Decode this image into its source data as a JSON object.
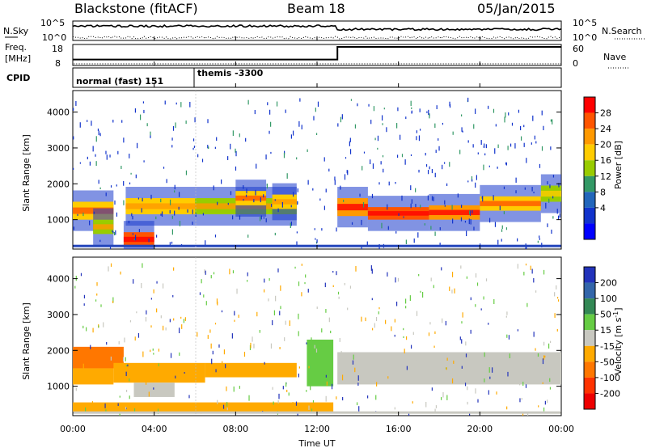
{
  "header": {
    "station": "Blackstone (fitACF)",
    "beam": "Beam 18",
    "date": "05/Jan/2015"
  },
  "nsky_panel": {
    "left_label": "N.Sky",
    "right_label": "N.Search",
    "ticks_left": [
      "10^5",
      "10^0"
    ],
    "ticks_right": [
      "10^5",
      "10^0"
    ]
  },
  "freq_panel": {
    "left_label_1": "Freq.",
    "left_label_2": "[MHz]",
    "right_label": "Nave",
    "ticks_left": [
      "18",
      "8"
    ],
    "ticks_right": [
      "60",
      "0"
    ],
    "freq_segments": [
      {
        "from_hour": 0,
        "to_hour": 13,
        "mhz": 10.2
      },
      {
        "from_hour": 13,
        "to_hour": 24,
        "mhz": 18
      }
    ]
  },
  "cpid_panel": {
    "label": "CPID",
    "modes": [
      {
        "name": "normal (fast) 151",
        "start_hour": 0
      },
      {
        "name": "themis -3300",
        "start_hour": 6
      }
    ]
  },
  "power_colorbar": {
    "label": "Power [dB]",
    "ticks": [
      "28",
      "24",
      "20",
      "16",
      "12",
      "8",
      "4"
    ],
    "colors": [
      "#ff0000",
      "#ff5500",
      "#ff9900",
      "#ffcc00",
      "#99cc00",
      "#339966",
      "#2266bb",
      "#1133cc",
      "#0000ff"
    ]
  },
  "velocity_colorbar": {
    "label": "Velocity [m s^-1]",
    "ticks": [
      "200",
      "100",
      "50",
      "15",
      "-15",
      "-50",
      "-100",
      "-200"
    ],
    "colors": [
      "#2233bb",
      "#3366aa",
      "#338855",
      "#66cc44",
      "#c8c8c0",
      "#ffaa00",
      "#ff7700",
      "#ff3300",
      "#ee0000"
    ]
  },
  "chart_data": {
    "type": "heatmap",
    "xlabel": "Time UT",
    "ylabel": "Slant Range [km]",
    "x_ticks": [
      "00:00",
      "04:00",
      "08:00",
      "12:00",
      "16:00",
      "20:00",
      "00:00"
    ],
    "y_ticks": [
      "1000",
      "2000",
      "3000",
      "4000"
    ],
    "xlim": [
      0,
      24
    ],
    "ylim": [
      180,
      4600
    ],
    "power_bands": [
      {
        "start_hour": 0.0,
        "end_hour": 2.0,
        "range_low": 1000,
        "range_high": 1500,
        "power_db": 20
      },
      {
        "start_hour": 1.0,
        "end_hour": 2.0,
        "range_low": 600,
        "range_high": 1000,
        "power_db": 16
      },
      {
        "start_hour": 2.6,
        "end_hour": 6.0,
        "range_low": 1150,
        "range_high": 1600,
        "power_db": 18
      },
      {
        "start_hour": 2.5,
        "end_hour": 4.0,
        "range_low": 250,
        "range_high": 650,
        "power_db": 26
      },
      {
        "start_hour": 6.0,
        "end_hour": 11.0,
        "range_low": 1150,
        "range_high": 1600,
        "power_db": 16
      },
      {
        "start_hour": 8.0,
        "end_hour": 9.5,
        "range_low": 1400,
        "range_high": 1800,
        "power_db": 20
      },
      {
        "start_hour": 9.8,
        "end_hour": 11.0,
        "range_low": 1300,
        "range_high": 1700,
        "power_db": 18
      },
      {
        "start_hour": 13.0,
        "end_hour": 14.5,
        "range_low": 1100,
        "range_high": 1600,
        "power_db": 24
      },
      {
        "start_hour": 14.5,
        "end_hour": 17.5,
        "range_low": 1000,
        "range_high": 1350,
        "power_db": 25
      },
      {
        "start_hour": 17.5,
        "end_hour": 20.0,
        "range_low": 1000,
        "range_high": 1400,
        "power_db": 24
      },
      {
        "start_hour": 20.0,
        "end_hour": 23.0,
        "range_low": 1250,
        "range_high": 1650,
        "power_db": 20
      },
      {
        "start_hour": 23.0,
        "end_hour": 24.0,
        "range_low": 1500,
        "range_high": 1950,
        "power_db": 14
      }
    ],
    "velocity_bands": [
      {
        "start_hour": 0.0,
        "end_hour": 2.5,
        "range_low": 1500,
        "range_high": 2100,
        "velocity": -100
      },
      {
        "start_hour": 0.0,
        "end_hour": 2.0,
        "range_low": 1050,
        "range_high": 1500,
        "velocity": -50
      },
      {
        "start_hour": 2.0,
        "end_hour": 6.5,
        "range_low": 1100,
        "range_high": 1650,
        "velocity": -50
      },
      {
        "start_hour": 3.0,
        "end_hour": 5.0,
        "range_low": 700,
        "range_high": 1100,
        "velocity": 0
      },
      {
        "start_hour": 6.5,
        "end_hour": 11.0,
        "range_low": 1250,
        "range_high": 1650,
        "velocity": -40
      },
      {
        "start_hour": 11.5,
        "end_hour": 12.8,
        "range_low": 1000,
        "range_high": 2300,
        "velocity": 20
      },
      {
        "start_hour": 13.0,
        "end_hour": 24.0,
        "range_low": 1050,
        "range_high": 1950,
        "velocity": 0
      },
      {
        "start_hour": 0.0,
        "end_hour": 12.8,
        "range_low": 250,
        "range_high": 550,
        "velocity": -20
      }
    ]
  }
}
